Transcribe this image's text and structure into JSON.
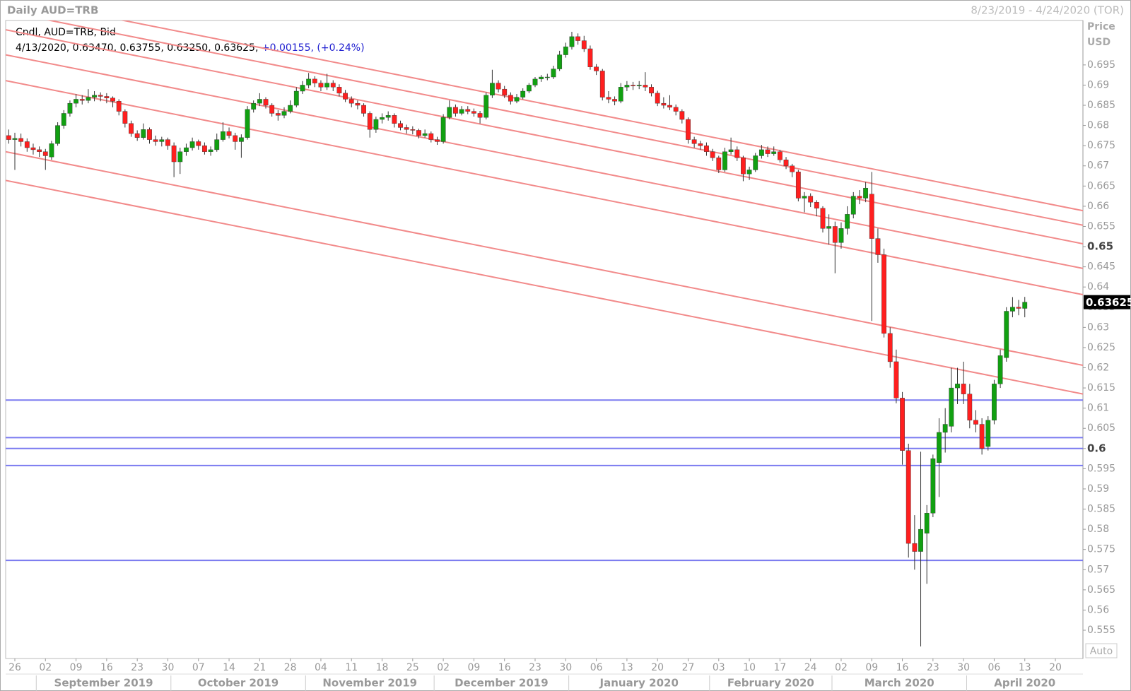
{
  "header": {
    "left": "Daily AUD=TRB",
    "right": "8/23/2019 - 4/24/2020 (TOR)"
  },
  "legend": {
    "title": "Cndl, AUD=TRB, Bid",
    "ohlc_text": "4/13/2020, 0.63470, 0.63755, 0.63250, 0.63625,",
    "change_text": "+0.00155, (+0.24%)"
  },
  "axis": {
    "title": "Price",
    "unit": "USD",
    "button": "Auto"
  },
  "chart_data": {
    "type": "candlestick",
    "up_color": "#11a011",
    "down_color": "#ff1f1f",
    "wick_color": "#333333",
    "ylim": [
      0.548,
      0.706
    ],
    "yticks": [
      0.555,
      0.56,
      0.565,
      0.57,
      0.575,
      0.58,
      0.585,
      0.59,
      0.595,
      0.6,
      0.605,
      0.61,
      0.615,
      0.62,
      0.625,
      0.63,
      0.635,
      0.64,
      0.645,
      0.65,
      0.655,
      0.66,
      0.665,
      0.67,
      0.675,
      0.68,
      0.685,
      0.69,
      0.695
    ],
    "months": [
      "September 2019",
      "October 2019",
      "November 2019",
      "December 2019",
      "January 2020",
      "February 2020",
      "March 2020",
      "April 2020"
    ],
    "categories": [
      null,
      "26",
      null,
      null,
      null,
      null,
      "02",
      null,
      null,
      null,
      null,
      "09",
      null,
      null,
      null,
      null,
      "16",
      null,
      null,
      null,
      null,
      "23",
      null,
      null,
      null,
      null,
      "30",
      null,
      null,
      null,
      null,
      "07",
      null,
      null,
      null,
      null,
      "14",
      null,
      null,
      null,
      null,
      "21",
      null,
      null,
      null,
      null,
      "28",
      null,
      null,
      null,
      null,
      "04",
      null,
      null,
      null,
      null,
      "11",
      null,
      null,
      null,
      null,
      "18",
      null,
      null,
      null,
      null,
      "25",
      null,
      null,
      null,
      null,
      "02",
      null,
      null,
      null,
      null,
      "09",
      null,
      null,
      null,
      null,
      "16",
      null,
      null,
      null,
      null,
      "23",
      null,
      null,
      null,
      null,
      "30",
      null,
      null,
      null,
      null,
      "06",
      null,
      null,
      null,
      null,
      "13",
      null,
      null,
      null,
      null,
      "20",
      null,
      null,
      null,
      null,
      "27",
      null,
      null,
      null,
      null,
      "03",
      null,
      null,
      null,
      null,
      "10",
      null,
      null,
      null,
      null,
      "17",
      null,
      null,
      null,
      null,
      "24",
      null,
      null,
      null,
      null,
      "02",
      null,
      null,
      null,
      null,
      "09",
      null,
      null,
      null,
      null,
      "16",
      null,
      null,
      null,
      null,
      "23",
      null,
      null,
      null,
      null,
      "30",
      null,
      null,
      null,
      null,
      "06",
      null,
      null,
      null,
      null,
      "13",
      null,
      null,
      null,
      null,
      "20",
      null,
      null,
      null,
      null
    ],
    "ohlc": [
      [
        0.6775,
        0.679,
        0.6755,
        0.6765
      ],
      [
        0.6765,
        0.6782,
        0.669,
        0.6768
      ],
      [
        0.6768,
        0.678,
        0.6748,
        0.676
      ],
      [
        0.676,
        0.6768,
        0.6735,
        0.6745
      ],
      [
        0.6745,
        0.6755,
        0.6728,
        0.674
      ],
      [
        0.674,
        0.6748,
        0.6722,
        0.6735
      ],
      [
        0.6735,
        0.6742,
        0.669,
        0.6725
      ],
      [
        0.6722,
        0.6762,
        0.6715,
        0.6755
      ],
      [
        0.6755,
        0.6808,
        0.675,
        0.68
      ],
      [
        0.68,
        0.6838,
        0.6792,
        0.683
      ],
      [
        0.683,
        0.6862,
        0.6822,
        0.6855
      ],
      [
        0.6855,
        0.6878,
        0.6845,
        0.6865
      ],
      [
        0.6865,
        0.6875,
        0.6852,
        0.6862
      ],
      [
        0.6862,
        0.689,
        0.6855,
        0.687
      ],
      [
        0.687,
        0.6885,
        0.686,
        0.6875
      ],
      [
        0.6875,
        0.6882,
        0.686,
        0.6872
      ],
      [
        0.6872,
        0.688,
        0.6855,
        0.6868
      ],
      [
        0.6868,
        0.6872,
        0.6845,
        0.686
      ],
      [
        0.686,
        0.6865,
        0.6825,
        0.6835
      ],
      [
        0.6835,
        0.684,
        0.6795,
        0.6805
      ],
      [
        0.6805,
        0.6812,
        0.6772,
        0.678
      ],
      [
        0.678,
        0.6788,
        0.6762,
        0.677
      ],
      [
        0.677,
        0.6805,
        0.6765,
        0.679
      ],
      [
        0.679,
        0.6795,
        0.6755,
        0.6765
      ],
      [
        0.6765,
        0.6775,
        0.675,
        0.676
      ],
      [
        0.676,
        0.6772,
        0.6748,
        0.6765
      ],
      [
        0.6765,
        0.677,
        0.674,
        0.675
      ],
      [
        0.675,
        0.6758,
        0.6672,
        0.671
      ],
      [
        0.671,
        0.6745,
        0.668,
        0.6735
      ],
      [
        0.6735,
        0.6755,
        0.6725,
        0.6745
      ],
      [
        0.6745,
        0.677,
        0.6738,
        0.676
      ],
      [
        0.676,
        0.6765,
        0.674,
        0.675
      ],
      [
        0.675,
        0.6758,
        0.6728,
        0.6735
      ],
      [
        0.6735,
        0.6748,
        0.6725,
        0.674
      ],
      [
        0.674,
        0.678,
        0.6735,
        0.6765
      ],
      [
        0.6765,
        0.6808,
        0.676,
        0.6785
      ],
      [
        0.6785,
        0.6795,
        0.6768,
        0.6775
      ],
      [
        0.6775,
        0.6782,
        0.674,
        0.676
      ],
      [
        0.676,
        0.6778,
        0.672,
        0.677
      ],
      [
        0.677,
        0.6848,
        0.6765,
        0.684
      ],
      [
        0.684,
        0.6862,
        0.6832,
        0.6855
      ],
      [
        0.6855,
        0.688,
        0.6848,
        0.6865
      ],
      [
        0.6865,
        0.687,
        0.6842,
        0.685
      ],
      [
        0.685,
        0.6855,
        0.6822,
        0.683
      ],
      [
        0.683,
        0.6838,
        0.6812,
        0.6825
      ],
      [
        0.6825,
        0.6845,
        0.6818,
        0.6835
      ],
      [
        0.6835,
        0.6862,
        0.683,
        0.685
      ],
      [
        0.685,
        0.6895,
        0.6845,
        0.6885
      ],
      [
        0.6885,
        0.691,
        0.6878,
        0.69
      ],
      [
        0.69,
        0.693,
        0.6892,
        0.6915
      ],
      [
        0.6915,
        0.6922,
        0.6895,
        0.6905
      ],
      [
        0.6905,
        0.6912,
        0.6885,
        0.6895
      ],
      [
        0.6895,
        0.6928,
        0.6888,
        0.6905
      ],
      [
        0.6905,
        0.6912,
        0.6885,
        0.6895
      ],
      [
        0.6895,
        0.6902,
        0.6872,
        0.688
      ],
      [
        0.688,
        0.6888,
        0.6858,
        0.6865
      ],
      [
        0.6865,
        0.6872,
        0.6845,
        0.6855
      ],
      [
        0.6855,
        0.6862,
        0.684,
        0.685
      ],
      [
        0.685,
        0.6855,
        0.6822,
        0.683
      ],
      [
        0.683,
        0.6835,
        0.677,
        0.679
      ],
      [
        0.679,
        0.6822,
        0.6782,
        0.6815
      ],
      [
        0.6815,
        0.683,
        0.6805,
        0.682
      ],
      [
        0.682,
        0.6835,
        0.6812,
        0.6825
      ],
      [
        0.6825,
        0.683,
        0.6795,
        0.6805
      ],
      [
        0.6805,
        0.6812,
        0.6788,
        0.6795
      ],
      [
        0.6795,
        0.6802,
        0.678,
        0.679
      ],
      [
        0.679,
        0.6798,
        0.6778,
        0.6788
      ],
      [
        0.6788,
        0.6792,
        0.6768,
        0.6775
      ],
      [
        0.6775,
        0.679,
        0.677,
        0.678
      ],
      [
        0.678,
        0.6785,
        0.6758,
        0.6765
      ],
      [
        0.6765,
        0.6772,
        0.6752,
        0.676
      ],
      [
        0.676,
        0.6828,
        0.6755,
        0.682
      ],
      [
        0.682,
        0.6862,
        0.6815,
        0.6845
      ],
      [
        0.6845,
        0.6852,
        0.6822,
        0.683
      ],
      [
        0.683,
        0.6848,
        0.6825,
        0.684
      ],
      [
        0.684,
        0.6848,
        0.6828,
        0.6835
      ],
      [
        0.6835,
        0.6842,
        0.6822,
        0.683
      ],
      [
        0.683,
        0.6836,
        0.6805,
        0.682
      ],
      [
        0.682,
        0.6882,
        0.6815,
        0.6875
      ],
      [
        0.6875,
        0.6938,
        0.6868,
        0.6905
      ],
      [
        0.6905,
        0.6912,
        0.6882,
        0.689
      ],
      [
        0.689,
        0.6898,
        0.6868,
        0.6875
      ],
      [
        0.6875,
        0.6882,
        0.6852,
        0.686
      ],
      [
        0.686,
        0.6878,
        0.6855,
        0.687
      ],
      [
        0.687,
        0.6892,
        0.6865,
        0.6885
      ],
      [
        0.6885,
        0.6905,
        0.688,
        0.69
      ],
      [
        0.69,
        0.692,
        0.6895,
        0.6915
      ],
      [
        0.6915,
        0.6925,
        0.6908,
        0.692
      ],
      [
        0.692,
        0.6928,
        0.6912,
        0.692
      ],
      [
        0.692,
        0.6948,
        0.6915,
        0.694
      ],
      [
        0.694,
        0.6985,
        0.6935,
        0.6975
      ],
      [
        0.6975,
        0.7005,
        0.6968,
        0.6995
      ],
      [
        0.6995,
        0.7032,
        0.6988,
        0.702
      ],
      [
        0.702,
        0.7028,
        0.7,
        0.701
      ],
      [
        0.701,
        0.7022,
        0.6982,
        0.699
      ],
      [
        0.699,
        0.6998,
        0.6938,
        0.6945
      ],
      [
        0.6945,
        0.6952,
        0.6925,
        0.6935
      ],
      [
        0.6935,
        0.694,
        0.6862,
        0.687
      ],
      [
        0.687,
        0.6885,
        0.6855,
        0.6865
      ],
      [
        0.6865,
        0.6872,
        0.685,
        0.686
      ],
      [
        0.686,
        0.6905,
        0.6855,
        0.6895
      ],
      [
        0.6895,
        0.691,
        0.6885,
        0.69
      ],
      [
        0.69,
        0.6908,
        0.6888,
        0.6898
      ],
      [
        0.6898,
        0.691,
        0.689,
        0.69
      ],
      [
        0.69,
        0.6932,
        0.6885,
        0.6895
      ],
      [
        0.6895,
        0.6902,
        0.6872,
        0.688
      ],
      [
        0.688,
        0.6886,
        0.6848,
        0.6855
      ],
      [
        0.6855,
        0.687,
        0.6842,
        0.685
      ],
      [
        0.685,
        0.6875,
        0.6838,
        0.6845
      ],
      [
        0.6845,
        0.6852,
        0.6825,
        0.6835
      ],
      [
        0.6835,
        0.684,
        0.6805,
        0.6815
      ],
      [
        0.6815,
        0.682,
        0.6755,
        0.6765
      ],
      [
        0.6765,
        0.6772,
        0.6745,
        0.6755
      ],
      [
        0.6755,
        0.6762,
        0.674,
        0.675
      ],
      [
        0.675,
        0.6758,
        0.6725,
        0.6735
      ],
      [
        0.6735,
        0.6742,
        0.6712,
        0.672
      ],
      [
        0.672,
        0.6725,
        0.6682,
        0.669
      ],
      [
        0.669,
        0.6745,
        0.6685,
        0.6735
      ],
      [
        0.6735,
        0.677,
        0.6728,
        0.674
      ],
      [
        0.674,
        0.6748,
        0.6712,
        0.672
      ],
      [
        0.672,
        0.6725,
        0.6662,
        0.668
      ],
      [
        0.668,
        0.6698,
        0.6665,
        0.669
      ],
      [
        0.669,
        0.6732,
        0.6685,
        0.6725
      ],
      [
        0.6725,
        0.6752,
        0.6718,
        0.674
      ],
      [
        0.674,
        0.6748,
        0.6722,
        0.673
      ],
      [
        0.673,
        0.6748,
        0.6725,
        0.6735
      ],
      [
        0.6735,
        0.674,
        0.6708,
        0.6715
      ],
      [
        0.6715,
        0.6722,
        0.6692,
        0.67
      ],
      [
        0.67,
        0.6705,
        0.6672,
        0.6685
      ],
      [
        0.6685,
        0.669,
        0.6612,
        0.662
      ],
      [
        0.662,
        0.6635,
        0.6585,
        0.6625
      ],
      [
        0.6625,
        0.6632,
        0.6598,
        0.661
      ],
      [
        0.661,
        0.6615,
        0.6575,
        0.6595
      ],
      [
        0.6595,
        0.66,
        0.6535,
        0.6545
      ],
      [
        0.6545,
        0.658,
        0.6505,
        0.655
      ],
      [
        0.655,
        0.6562,
        0.6434,
        0.651
      ],
      [
        0.651,
        0.656,
        0.6495,
        0.6545
      ],
      [
        0.6545,
        0.66,
        0.653,
        0.658
      ],
      [
        0.658,
        0.6635,
        0.657,
        0.6625
      ],
      [
        0.6625,
        0.664,
        0.6605,
        0.662
      ],
      [
        0.662,
        0.666,
        0.661,
        0.6645
      ],
      [
        0.663,
        0.6685,
        0.6316,
        0.652
      ],
      [
        0.652,
        0.6545,
        0.646,
        0.648
      ],
      [
        0.648,
        0.6495,
        0.6275,
        0.6285
      ],
      [
        0.6285,
        0.63,
        0.62,
        0.6215
      ],
      [
        0.6215,
        0.6245,
        0.6112,
        0.6125
      ],
      [
        0.6125,
        0.614,
        0.596,
        0.5995
      ],
      [
        0.5995,
        0.6012,
        0.573,
        0.5765
      ],
      [
        0.5765,
        0.5835,
        0.57,
        0.5745
      ],
      [
        0.5745,
        0.5992,
        0.551,
        0.58
      ],
      [
        0.579,
        0.586,
        0.5665,
        0.584
      ],
      [
        0.584,
        0.5985,
        0.583,
        0.5975
      ],
      [
        0.5965,
        0.6075,
        0.588,
        0.604
      ],
      [
        0.604,
        0.61,
        0.599,
        0.606
      ],
      [
        0.6055,
        0.62,
        0.604,
        0.615
      ],
      [
        0.615,
        0.62,
        0.611,
        0.616
      ],
      [
        0.616,
        0.6215,
        0.611,
        0.6135
      ],
      [
        0.6135,
        0.616,
        0.605,
        0.607
      ],
      [
        0.607,
        0.6095,
        0.604,
        0.606
      ],
      [
        0.606,
        0.6075,
        0.5985,
        0.6
      ],
      [
        0.6005,
        0.608,
        0.5995,
        0.607
      ],
      [
        0.607,
        0.617,
        0.606,
        0.616
      ],
      [
        0.616,
        0.6245,
        0.615,
        0.623
      ],
      [
        0.6225,
        0.635,
        0.6215,
        0.634
      ],
      [
        0.634,
        0.6375,
        0.6325,
        0.635
      ],
      [
        0.635,
        0.6368,
        0.633,
        0.6347
      ],
      [
        0.6347,
        0.63755,
        0.6325,
        0.63625
      ],
      null,
      null,
      null,
      null,
      null,
      null,
      null,
      null,
      null
    ],
    "trendline_color": "#f28a8a",
    "trendlines": [
      {
        "start": 0.7118,
        "end": 0.6589
      },
      {
        "start": 0.7082,
        "end": 0.6553
      },
      {
        "start": 0.7037,
        "end": 0.6507
      },
      {
        "start": 0.6975,
        "end": 0.6446
      },
      {
        "start": 0.6911,
        "end": 0.6381
      },
      {
        "start": 0.6735,
        "end": 0.6206
      },
      {
        "start": 0.6664,
        "end": 0.6135
      }
    ],
    "hline_color": "#7b7bf0",
    "hlines": [
      0.612,
      0.6027,
      0.6,
      0.5958,
      0.5723
    ]
  }
}
